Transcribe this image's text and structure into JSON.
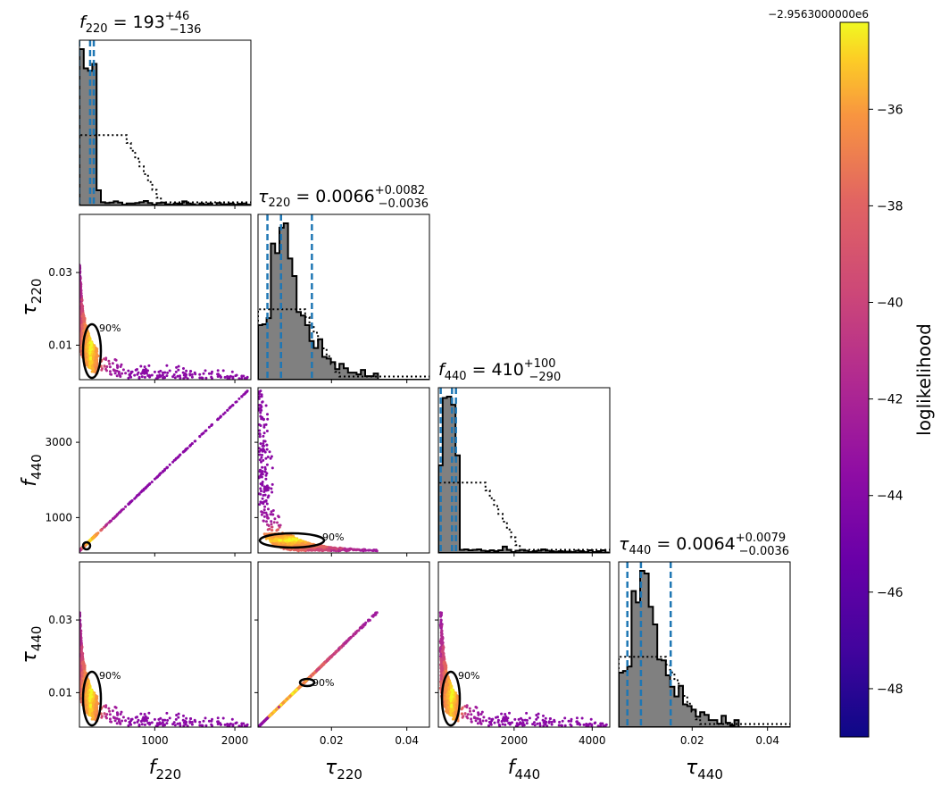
{
  "chart_data": {
    "type": "scatter",
    "description_of_panels": "corner",
    "params": [
      {
        "key": "f220",
        "symbol": "f",
        "sub": "220",
        "median": 193,
        "plus": "+46",
        "minus": "−136",
        "median_text": "193",
        "range": [
          60,
          2200
        ],
        "ticks": [
          1000,
          2000
        ],
        "tick_labels": [
          "1000",
          "2000"
        ]
      },
      {
        "key": "tau220",
        "symbol": "τ",
        "sub": "220",
        "median": 0.0066,
        "plus": "+0.0082",
        "minus": "−0.0036",
        "median_text": "0.0066",
        "range": [
          0.0005,
          0.046
        ],
        "ticks": [
          0.01,
          0.03
        ],
        "tick_labels": [
          "0.01",
          "0.03"
        ],
        "x_ticks": [
          0.02,
          0.04
        ],
        "x_tick_labels": [
          "0.02",
          "0.04"
        ]
      },
      {
        "key": "f440",
        "symbol": "f",
        "sub": "440",
        "median": 410,
        "plus": "+100",
        "minus": "−290",
        "median_text": "410",
        "range": [
          60,
          4450
        ],
        "ticks": [
          1000,
          3000
        ],
        "tick_labels": [
          "1000",
          "3000"
        ],
        "x_ticks": [
          2000,
          4000
        ],
        "x_tick_labels": [
          "2000",
          "4000"
        ]
      },
      {
        "key": "tau440",
        "symbol": "τ",
        "sub": "440",
        "median": 0.0064,
        "plus": "+0.0079",
        "minus": "−0.0036",
        "median_text": "0.0064",
        "range": [
          0.0005,
          0.046
        ],
        "ticks": [
          0.01,
          0.03
        ],
        "tick_labels": [
          "0.01",
          "0.03"
        ],
        "x_ticks": [
          0.02,
          0.04
        ],
        "x_tick_labels": [
          "0.02",
          "0.04"
        ]
      }
    ],
    "quantile_lines": {
      "f220": [
        57,
        193,
        239
      ],
      "tau220": [
        0.003,
        0.0066,
        0.0148
      ],
      "f440": [
        120,
        410,
        510
      ],
      "tau440": [
        0.0028,
        0.0064,
        0.0143
      ]
    },
    "contour_label": "90%",
    "colorbar": {
      "label": "loglikelihood",
      "offset": "−2.9563000000e6",
      "range": [
        -49,
        -34.2
      ],
      "ticks": [
        -36,
        -38,
        -40,
        -42,
        -44,
        -46,
        -48
      ],
      "tick_labels": [
        "−36",
        "−38",
        "−40",
        "−42",
        "−44",
        "−46",
        "−48"
      ],
      "colormap": "plasma"
    },
    "histogram_fill_color": "#808080",
    "quantile_line_color": "#1f77b4"
  }
}
